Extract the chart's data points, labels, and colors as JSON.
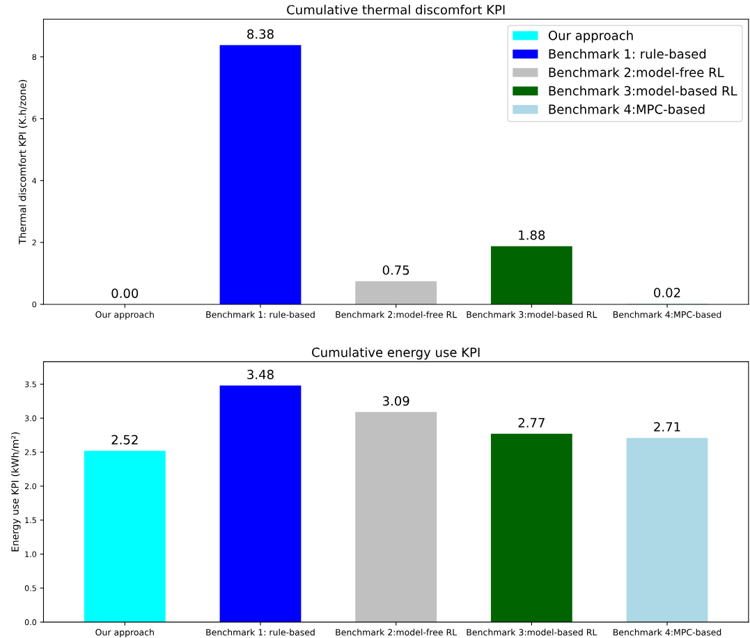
{
  "chart_data": [
    {
      "type": "bar",
      "title": "Cumulative thermal discomfort KPI",
      "ylabel": "Thermal discomfort KPI (K.h/zone)",
      "categories": [
        "Our approach",
        "Benchmark 1: rule-based",
        "Benchmark 2:model-free RL",
        "Benchmark 3:model-based RL",
        "Benchmark 4:MPC-based"
      ],
      "series": [
        {
          "name": "Our approach",
          "color": "#00ffff",
          "values": [
            0.0,
            null,
            null,
            null,
            null
          ],
          "value_labels": [
            "0.00",
            null,
            null,
            null,
            null
          ]
        },
        {
          "name": "Benchmark 1: rule-based",
          "color": "#0000ff",
          "values": [
            null,
            8.38,
            null,
            null,
            null
          ],
          "value_labels": [
            null,
            "8.38",
            null,
            null,
            null
          ]
        },
        {
          "name": "Benchmark 2:model-free RL",
          "color": "#c0c0c0",
          "values": [
            null,
            null,
            0.75,
            null,
            null
          ],
          "value_labels": [
            null,
            null,
            "0.75",
            null,
            null
          ]
        },
        {
          "name": "Benchmark 3:model-based RL",
          "color": "#006400",
          "values": [
            null,
            null,
            null,
            1.88,
            null
          ],
          "value_labels": [
            null,
            null,
            null,
            "1.88",
            null
          ]
        },
        {
          "name": "Benchmark 4:MPC-based",
          "color": "#add8e6",
          "values": [
            null,
            null,
            null,
            null,
            0.02
          ],
          "value_labels": [
            null,
            null,
            null,
            null,
            "0.02"
          ]
        }
      ],
      "ylim": [
        0,
        9.22
      ],
      "yticks": [
        0,
        2,
        4,
        6,
        8
      ],
      "legend": "top right"
    },
    {
      "type": "bar",
      "title": "Cumulative energy use KPI",
      "ylabel": "Energy use KPI (kWh/m²)",
      "categories": [
        "Our approach",
        "Benchmark 1: rule-based",
        "Benchmark 2:model-free RL",
        "Benchmark 3:model-based RL",
        "Benchmark 4:MPC-based"
      ],
      "series": [
        {
          "color": "#00ffff",
          "values": [
            2.52,
            null,
            null,
            null,
            null
          ],
          "value_labels": [
            "2.52",
            null,
            null,
            null,
            null
          ]
        },
        {
          "color": "#0000ff",
          "values": [
            null,
            3.48,
            null,
            null,
            null
          ],
          "value_labels": [
            null,
            "3.48",
            null,
            null,
            null
          ]
        },
        {
          "color": "#c0c0c0",
          "values": [
            null,
            null,
            3.09,
            null,
            null
          ],
          "value_labels": [
            null,
            null,
            "3.09",
            null,
            null
          ]
        },
        {
          "color": "#006400",
          "values": [
            null,
            null,
            null,
            2.77,
            null
          ],
          "value_labels": [
            null,
            null,
            null,
            "2.77",
            null
          ]
        },
        {
          "color": "#add8e6",
          "values": [
            null,
            null,
            null,
            null,
            2.71
          ],
          "value_labels": [
            null,
            null,
            null,
            null,
            "2.71"
          ]
        }
      ],
      "ylim": [
        0,
        3.83
      ],
      "yticks": [
        {
          "value": 0,
          "label": "0.0"
        },
        0.5,
        {
          "value": 1,
          "label": "1.0"
        },
        1.5,
        {
          "value": 2,
          "label": "2.0"
        },
        2.5,
        {
          "value": 3,
          "label": "3.0"
        },
        3.5
      ]
    }
  ]
}
